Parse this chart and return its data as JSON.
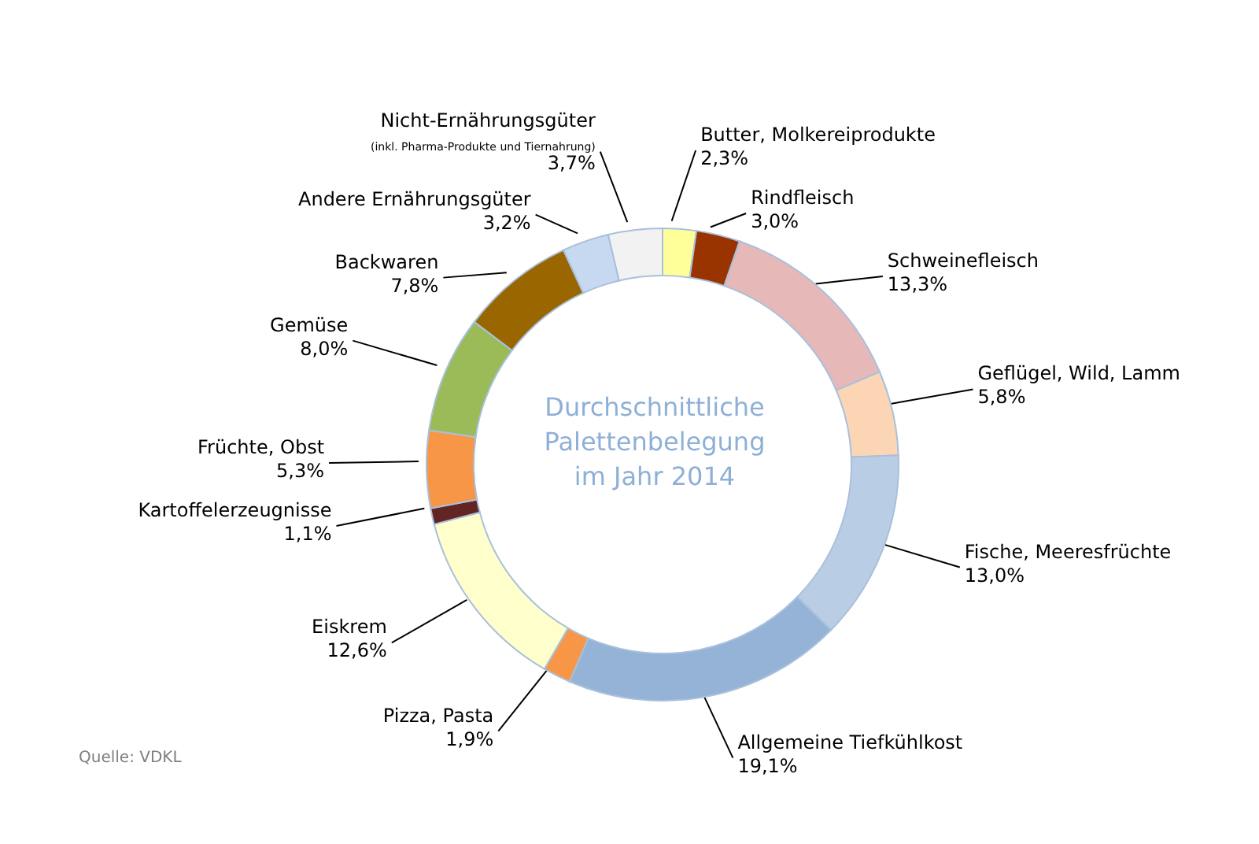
{
  "chart_data": {
    "type": "donut",
    "title": "Durchschnittliche Palettenbelegung im Jahr 2014",
    "categories": [
      "Butter, Molkereiprodukte",
      "Rindfleisch",
      "Schweinefleisch",
      "Geflügel, Wild, Lamm",
      "Fische, Meeresfrüchte",
      "Allgemeine Tiefkühlkost",
      "Pizza, Pasta",
      "Eiskrem",
      "Kartoffelerzeugnisse",
      "Früchte, Obst",
      "Gemüse",
      "Backwaren",
      "Andere Ernährungsgüter",
      "Nicht-Ernährungsgüter"
    ],
    "values": [
      2.3,
      3.0,
      13.3,
      5.8,
      13.0,
      19.1,
      1.9,
      12.6,
      1.1,
      5.3,
      8.0,
      7.8,
      3.2,
      3.7
    ],
    "value_labels": [
      "2,3%",
      "3,0%",
      "13,3%",
      "5,8%",
      "13,0%",
      "19,1%",
      "1,9%",
      "12,6%",
      "1,1%",
      "5,3%",
      "8,0%",
      "7,8%",
      "3,2%",
      "3,7%"
    ],
    "colors": [
      "#ffff99",
      "#993300",
      "#e6b9b8",
      "#fcd5b5",
      "#b9cde5",
      "#95b3d7",
      "#f79646",
      "#ffffcc",
      "#632523",
      "#f79646",
      "#9bbb59",
      "#996600",
      "#c6d9f1",
      "#f2f2f2"
    ],
    "annotations": [
      {
        "text": "(inkl. Pharma-Produkte und Tiernahrung)",
        "x": "Nicht-Ernährungsgüter"
      },
      "Quelle: VDKL"
    ]
  }
}
